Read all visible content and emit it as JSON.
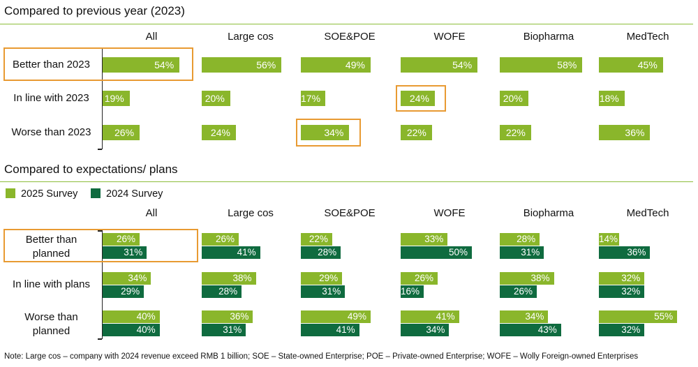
{
  "chart_data": [
    {
      "type": "bar",
      "orientation": "horizontal",
      "title": "Compared to previous year (2023)",
      "groups": [
        "All",
        "Large cos",
        "SOE&POE",
        "WOFE",
        "Biopharma",
        "MedTech"
      ],
      "categories": [
        "Better than 2023",
        "In line with 2023",
        "Worse than 2023"
      ],
      "series": [
        {
          "name": "All",
          "values": [
            54,
            19,
            26
          ]
        },
        {
          "name": "Large cos",
          "values": [
            56,
            20,
            24
          ]
        },
        {
          "name": "SOE&POE",
          "values": [
            49,
            17,
            34
          ]
        },
        {
          "name": "WOFE",
          "values": [
            54,
            24,
            22
          ]
        },
        {
          "name": "Biopharma",
          "values": [
            58,
            20,
            22
          ]
        },
        {
          "name": "MedTech",
          "values": [
            45,
            18,
            36
          ]
        }
      ],
      "unit": "%",
      "highlighted": [
        {
          "group": "All",
          "category": "Better than 2023"
        },
        {
          "group": "WOFE",
          "category": "In line with 2023"
        },
        {
          "group": "SOE&POE",
          "category": "Worse than 2023"
        }
      ]
    },
    {
      "type": "bar",
      "orientation": "horizontal",
      "title": "Compared to expectations/ plans",
      "groups": [
        "All",
        "Large cos",
        "SOE&POE",
        "WOFE",
        "Biopharma",
        "MedTech"
      ],
      "categories": [
        "Better than planned",
        "In line with plans",
        "Worse than planned"
      ],
      "legend": [
        "2025 Survey",
        "2024 Survey"
      ],
      "series": [
        {
          "group": "All",
          "s2025": [
            26,
            34,
            40
          ],
          "s2024": [
            31,
            29,
            40
          ]
        },
        {
          "group": "Large cos",
          "s2025": [
            26,
            38,
            36
          ],
          "s2024": [
            41,
            28,
            31
          ]
        },
        {
          "group": "SOE&POE",
          "s2025": [
            22,
            29,
            49
          ],
          "s2024": [
            28,
            31,
            41
          ]
        },
        {
          "group": "WOFE",
          "s2025": [
            33,
            26,
            41
          ],
          "s2024": [
            50,
            16,
            34
          ]
        },
        {
          "group": "Biopharma",
          "s2025": [
            28,
            38,
            34
          ],
          "s2024": [
            31,
            26,
            43
          ]
        },
        {
          "group": "MedTech",
          "s2025": [
            14,
            32,
            55
          ],
          "s2024": [
            36,
            32,
            32
          ]
        }
      ],
      "unit": "%",
      "highlighted": [
        {
          "group": "All",
          "category": "Better than planned"
        }
      ]
    }
  ],
  "colors": {
    "s2025": "#8ab62b",
    "s2024": "#0f6b3f",
    "highlight": "#e89a32",
    "rule": "#8cbd3a"
  },
  "labels": {
    "row_top": [
      "Better than 2023",
      "In line with 2023",
      "Worse than 2023"
    ],
    "row_bottom": [
      [
        "Better than",
        "planned"
      ],
      [
        "In line with plans"
      ],
      [
        "Worse than",
        "planned"
      ]
    ],
    "legend_2025": "2025 Survey",
    "legend_2024": "2024 Survey"
  },
  "note": "Note: Large cos – company with 2024 revenue exceed RMB 1 billion; SOE – State-owned Enterprise; POE – Private-owned Enterprise; WOFE – Wolly Foreign-owned Enterprises"
}
